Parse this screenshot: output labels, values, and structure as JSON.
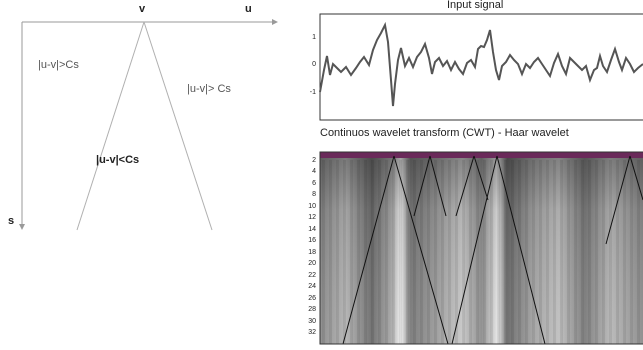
{
  "cone_diagram": {
    "axis_v": "v",
    "axis_u": "u",
    "axis_s": "s",
    "region_left": "|u-v|>Cs",
    "region_right": "|u-v|> Cs",
    "region_inside": "|u-v|<Cs"
  },
  "signal_panel": {
    "title": "Input signal",
    "y_ticks": [
      "1",
      "0",
      "-1"
    ]
  },
  "cwt_panel": {
    "title": "Continuos wavelet transform (CWT) - Haar wavelet",
    "y_ticks": [
      "2",
      "4",
      "6",
      "8",
      "10",
      "12",
      "14",
      "16",
      "18",
      "20",
      "22",
      "24",
      "26",
      "28",
      "30",
      "32"
    ]
  },
  "colors": {
    "diagram_line": "#9a9a9a",
    "signal_line": "#555555",
    "cwt_top_band": "#6a2a5a"
  }
}
